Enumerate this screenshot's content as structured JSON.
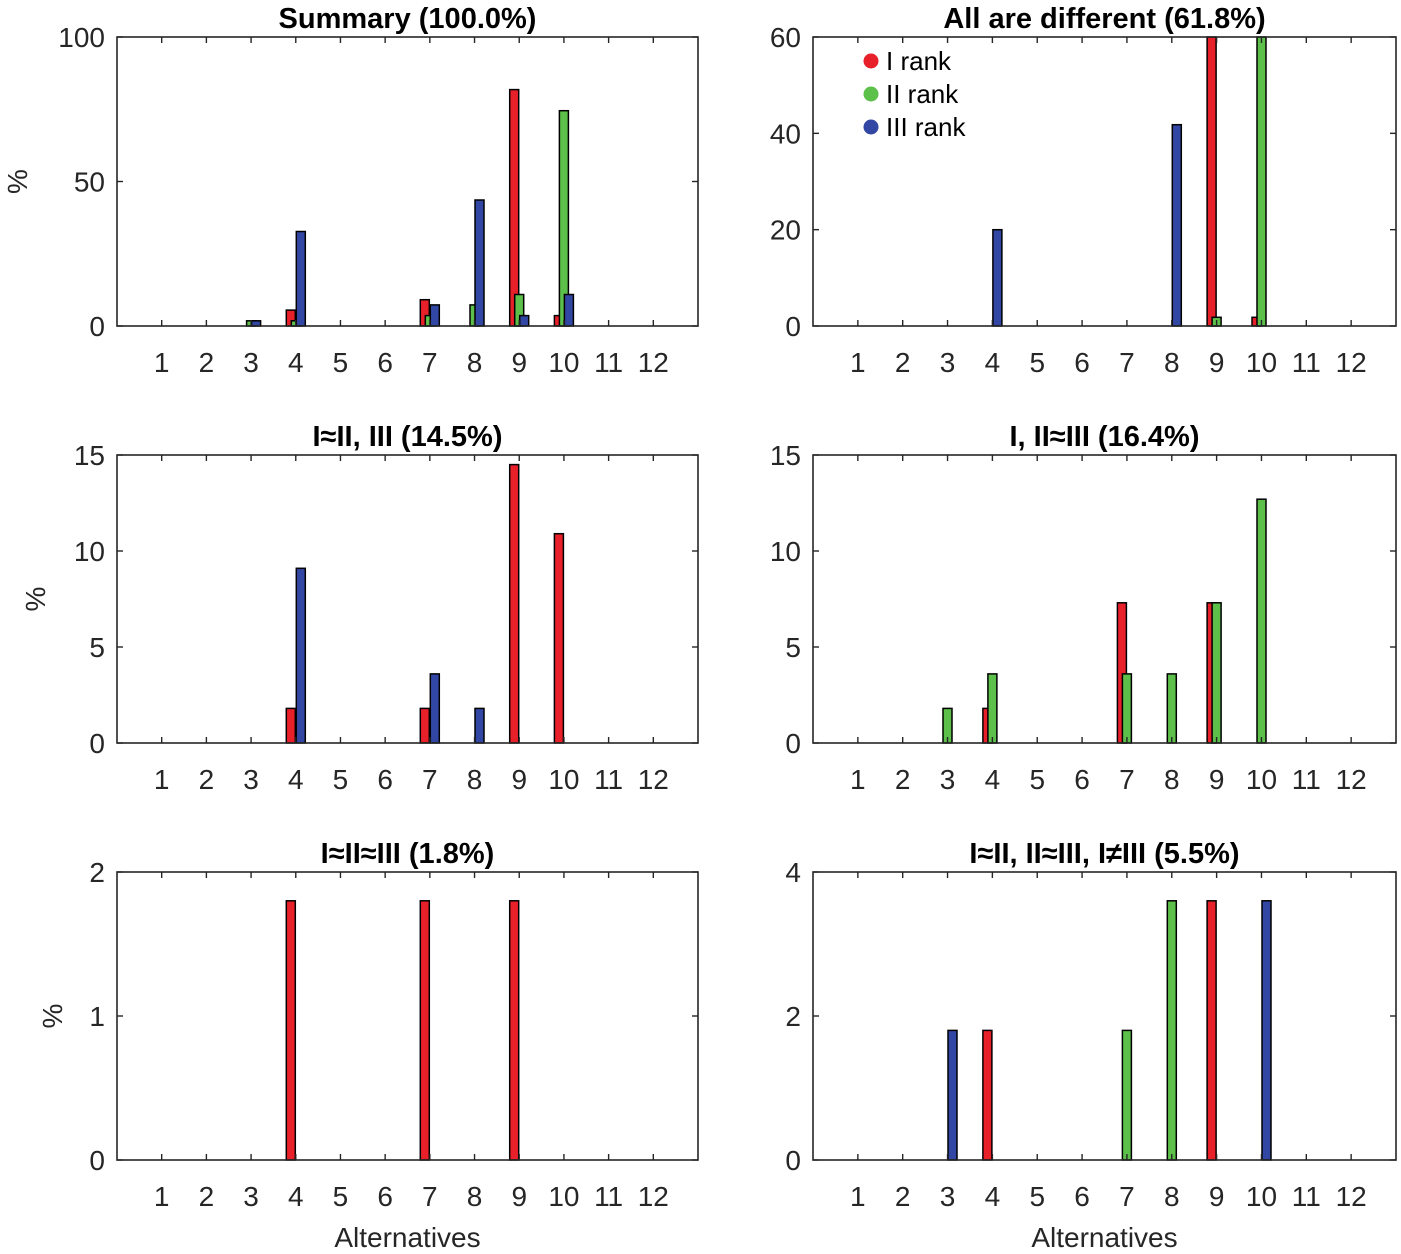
{
  "series_colors": {
    "I rank": "#e8202a",
    "II rank": "#5cc04a",
    "III rank": "#3247a3"
  },
  "legend": {
    "entries": [
      "I rank",
      "II rank",
      "III rank"
    ],
    "location": "top-left of panel 2"
  },
  "chart_data": [
    {
      "type": "bar",
      "title": "Summary (100.0%)",
      "ylabel": "%",
      "xlabel": "",
      "ylim": [
        0,
        100
      ],
      "yticks": [
        "0",
        "50",
        "100"
      ],
      "categories": [
        "1",
        "2",
        "3",
        "4",
        "5",
        "6",
        "7",
        "8",
        "9",
        "10",
        "11",
        "12"
      ],
      "series": [
        {
          "name": "I rank",
          "values": [
            0,
            0,
            0,
            5.5,
            0,
            0,
            9.1,
            0,
            81.8,
            3.6,
            0,
            0
          ]
        },
        {
          "name": "II rank",
          "values": [
            0,
            0,
            1.8,
            1.8,
            0,
            0,
            3.6,
            7.3,
            10.9,
            74.5,
            0,
            0
          ]
        },
        {
          "name": "III rank",
          "values": [
            0,
            0,
            1.8,
            32.7,
            0,
            0,
            7.3,
            43.6,
            3.6,
            10.9,
            0,
            0
          ]
        }
      ]
    },
    {
      "type": "bar",
      "title": "All are different (61.8%)",
      "ylabel": "",
      "xlabel": "",
      "ylim": [
        0,
        60
      ],
      "yticks": [
        "0",
        "20",
        "40",
        "60"
      ],
      "categories": [
        "1",
        "2",
        "3",
        "4",
        "5",
        "6",
        "7",
        "8",
        "9",
        "10",
        "11",
        "12"
      ],
      "legend": "top-left",
      "series": [
        {
          "name": "I rank",
          "values": [
            0,
            0,
            0,
            0,
            0,
            0,
            0,
            0,
            60,
            1.8,
            0,
            0
          ]
        },
        {
          "name": "II rank",
          "values": [
            0,
            0,
            0,
            0,
            0,
            0,
            0,
            0,
            1.8,
            60,
            0,
            0
          ]
        },
        {
          "name": "III rank",
          "values": [
            0,
            0,
            0,
            20,
            0,
            0,
            0,
            41.8,
            0,
            0,
            0,
            0
          ]
        }
      ]
    },
    {
      "type": "bar",
      "title": "I≈II, III (14.5%)",
      "ylabel": "%",
      "xlabel": "",
      "ylim": [
        0,
        15
      ],
      "yticks": [
        "0",
        "5",
        "10",
        "15"
      ],
      "categories": [
        "1",
        "2",
        "3",
        "4",
        "5",
        "6",
        "7",
        "8",
        "9",
        "10",
        "11",
        "12"
      ],
      "series": [
        {
          "name": "I rank",
          "values": [
            0,
            0,
            0,
            1.8,
            0,
            0,
            1.8,
            0,
            14.5,
            10.9,
            0,
            0
          ]
        },
        {
          "name": "II rank",
          "values": [
            0,
            0,
            0,
            0,
            0,
            0,
            0,
            0,
            0,
            0,
            0,
            0
          ]
        },
        {
          "name": "III rank",
          "values": [
            0,
            0,
            0,
            9.1,
            0,
            0,
            3.6,
            1.8,
            0,
            0,
            0,
            0
          ]
        }
      ]
    },
    {
      "type": "bar",
      "title": "I, II≈III (16.4%)",
      "ylabel": "",
      "xlabel": "",
      "ylim": [
        0,
        15
      ],
      "yticks": [
        "0",
        "5",
        "10",
        "15"
      ],
      "categories": [
        "1",
        "2",
        "3",
        "4",
        "5",
        "6",
        "7",
        "8",
        "9",
        "10",
        "11",
        "12"
      ],
      "series": [
        {
          "name": "I rank",
          "values": [
            0,
            0,
            0,
            1.8,
            0,
            0,
            7.3,
            0,
            7.3,
            0,
            0,
            0
          ]
        },
        {
          "name": "II rank",
          "values": [
            0,
            0,
            1.8,
            3.6,
            0,
            0,
            3.6,
            3.6,
            7.3,
            12.7,
            0,
            0
          ]
        },
        {
          "name": "III rank",
          "values": [
            0,
            0,
            0,
            0,
            0,
            0,
            0,
            0,
            0,
            0,
            0,
            0
          ]
        }
      ]
    },
    {
      "type": "bar",
      "title": "I≈II≈III (1.8%)",
      "ylabel": "%",
      "xlabel": "Alternatives",
      "ylim": [
        0,
        2
      ],
      "yticks": [
        "0",
        "1",
        "2"
      ],
      "categories": [
        "1",
        "2",
        "3",
        "4",
        "5",
        "6",
        "7",
        "8",
        "9",
        "10",
        "11",
        "12"
      ],
      "series": [
        {
          "name": "I rank",
          "values": [
            0,
            0,
            0,
            1.8,
            0,
            0,
            1.8,
            0,
            1.8,
            0,
            0,
            0
          ]
        },
        {
          "name": "II rank",
          "values": [
            0,
            0,
            0,
            0,
            0,
            0,
            0,
            0,
            0,
            0,
            0,
            0
          ]
        },
        {
          "name": "III rank",
          "values": [
            0,
            0,
            0,
            0,
            0,
            0,
            0,
            0,
            0,
            0,
            0,
            0
          ]
        }
      ]
    },
    {
      "type": "bar",
      "title": "I≈II, II≈III, I≠III (5.5%)",
      "ylabel": "",
      "xlabel": "Alternatives",
      "ylim": [
        0,
        4
      ],
      "yticks": [
        "0",
        "2",
        "4"
      ],
      "categories": [
        "1",
        "2",
        "3",
        "4",
        "5",
        "6",
        "7",
        "8",
        "9",
        "10",
        "11",
        "12"
      ],
      "series": [
        {
          "name": "I rank",
          "values": [
            0,
            0,
            0,
            1.8,
            0,
            0,
            0,
            0,
            3.6,
            0,
            0,
            0
          ]
        },
        {
          "name": "II rank",
          "values": [
            0,
            0,
            0,
            0,
            0,
            0,
            1.8,
            3.6,
            0,
            0,
            0,
            0
          ]
        },
        {
          "name": "III rank",
          "values": [
            0,
            0,
            1.8,
            0,
            0,
            0,
            0,
            0,
            0,
            3.6,
            0,
            0
          ]
        }
      ]
    }
  ]
}
